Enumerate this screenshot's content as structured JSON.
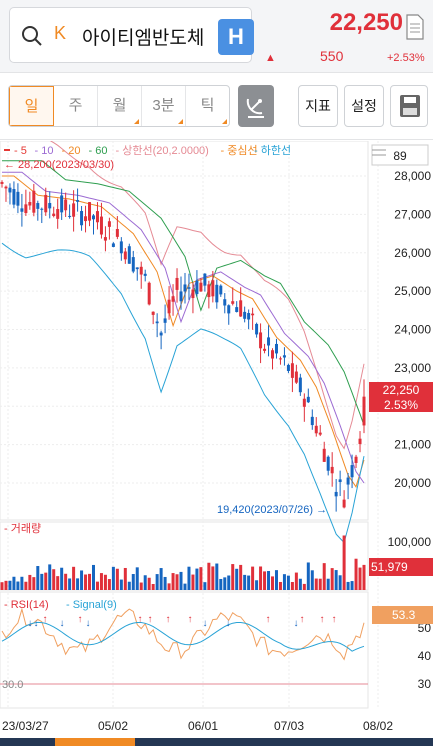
{
  "header": {
    "market_mark": "K",
    "stock_name": "아이티엠반도체",
    "badge": "H",
    "price": "22,250",
    "change": "550",
    "change_pct": "+2.53%",
    "up_color": "#e0303a",
    "accent": "#f08a24"
  },
  "toolbar": {
    "periods": [
      {
        "label": "일",
        "selected": true
      },
      {
        "label": "주"
      },
      {
        "label": "월",
        "corner": true
      },
      {
        "label": "3분",
        "corner": true
      },
      {
        "label": "틱",
        "corner": true
      }
    ],
    "indicator_label": "지표",
    "settings_label": "설정"
  },
  "chart": {
    "legend": [
      {
        "text": "5",
        "color": "#e53935"
      },
      {
        "text": "10",
        "color": "#9c6bd3"
      },
      {
        "text": "20",
        "color": "#f08a24"
      },
      {
        "text": "60",
        "color": "#2e9e4f"
      },
      {
        "text": "상한선(20,2.0000)",
        "color": "#e58a94"
      },
      {
        "text": "중심선",
        "color": "#f08a24"
      },
      {
        "text": "하한선",
        "color": "#29a3d6"
      }
    ],
    "period_count": "89",
    "high_note": "28,200(2023/03/30)",
    "low_note": "19,420(2023/07/26)",
    "price_axis": [
      "28,000",
      "27,000",
      "26,000",
      "25,000",
      "24,000",
      "23,000",
      "22,000",
      "21,000",
      "20,000"
    ],
    "price_tag": "22,250",
    "pct_tag": "2.53%",
    "volume_label": "거래량",
    "volume_axis": "100,000",
    "volume_tag": "51,979",
    "rsi_label": "RSI(14)",
    "signal_label": "Signal(9)",
    "rsi_axis": [
      "50",
      "40",
      "30"
    ],
    "rsi_ref": "30.0",
    "rsi_tag": "53.3",
    "dates": [
      "23/03/27",
      "05/02",
      "06/01",
      "07/03",
      "08/02"
    ]
  }
}
